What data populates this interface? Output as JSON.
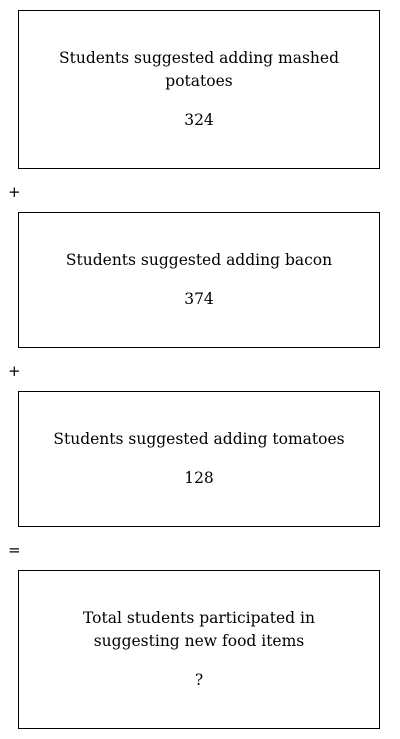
{
  "boxes": [
    {
      "label": "Students suggested adding mashed potatoes",
      "value": "324"
    },
    {
      "label": "Students suggested adding bacon",
      "value": "374"
    },
    {
      "label": "Students suggested adding tomatoes",
      "value": "128"
    },
    {
      "label": "Total students participated in suggesting new food items",
      "value": "?"
    }
  ],
  "operators": [
    "+",
    "+",
    "="
  ]
}
